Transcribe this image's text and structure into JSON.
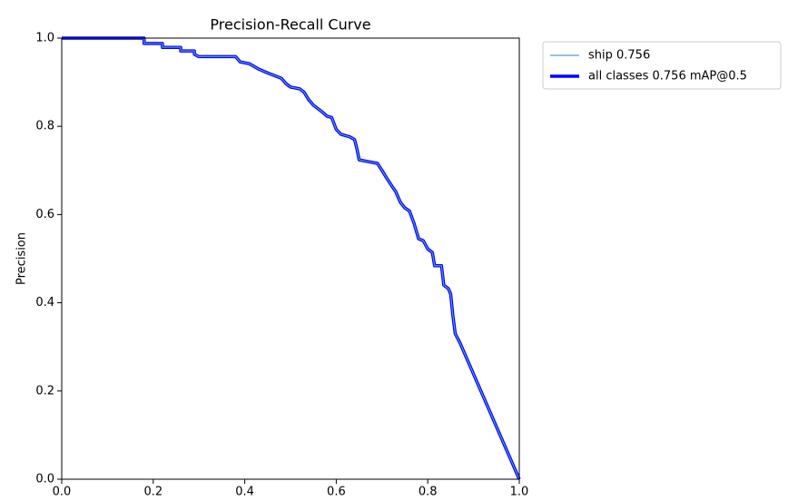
{
  "chart_data": {
    "type": "line",
    "title": "Precision-Recall Curve",
    "y_label": "Precision",
    "x": [
      0,
      0.18,
      0.18,
      0.22,
      0.22,
      0.26,
      0.26,
      0.29,
      0.29,
      0.3,
      0.38,
      0.39,
      0.41,
      0.43,
      0.45,
      0.48,
      0.49,
      0.5,
      0.52,
      0.53,
      0.54,
      0.55,
      0.56,
      0.57,
      0.58,
      0.59,
      0.6,
      0.61,
      0.63,
      0.64,
      0.645,
      0.65,
      0.67,
      0.69,
      0.7,
      0.71,
      0.72,
      0.73,
      0.74,
      0.75,
      0.76,
      0.77,
      0.78,
      0.79,
      0.8,
      0.81,
      0.815,
      0.83,
      0.835,
      0.845,
      0.85,
      0.855,
      0.86,
      0.87,
      1.0
    ],
    "series": [
      {
        "name": "ship 0.756",
        "color": "#5b9bd5",
        "width": 1.2,
        "values": [
          1,
          1,
          0.988,
          0.988,
          0.979,
          0.979,
          0.971,
          0.971,
          0.963,
          0.958,
          0.958,
          0.946,
          0.942,
          0.93,
          0.921,
          0.909,
          0.897,
          0.889,
          0.885,
          0.877,
          0.86,
          0.848,
          0.84,
          0.832,
          0.823,
          0.82,
          0.793,
          0.782,
          0.776,
          0.77,
          0.75,
          0.724,
          0.72,
          0.716,
          0.7,
          0.683,
          0.667,
          0.652,
          0.628,
          0.615,
          0.608,
          0.58,
          0.545,
          0.541,
          0.522,
          0.514,
          0.484,
          0.484,
          0.44,
          0.432,
          0.42,
          0.37,
          0.33,
          0.31,
          0
        ]
      },
      {
        "name": "all classes 0.756 mAP@0.5",
        "color": "#0000ff",
        "width": 3.5,
        "values": [
          1,
          1,
          0.988,
          0.988,
          0.979,
          0.979,
          0.971,
          0.971,
          0.963,
          0.958,
          0.958,
          0.946,
          0.942,
          0.93,
          0.921,
          0.909,
          0.897,
          0.889,
          0.885,
          0.877,
          0.86,
          0.848,
          0.84,
          0.832,
          0.823,
          0.82,
          0.793,
          0.782,
          0.776,
          0.77,
          0.75,
          0.724,
          0.72,
          0.716,
          0.7,
          0.683,
          0.667,
          0.652,
          0.628,
          0.615,
          0.608,
          0.58,
          0.545,
          0.541,
          0.522,
          0.514,
          0.484,
          0.484,
          0.44,
          0.432,
          0.42,
          0.37,
          0.33,
          0.31,
          0
        ]
      }
    ],
    "xlim": [
      0,
      1
    ],
    "ylim": [
      0,
      1
    ],
    "xticks": [
      {
        "value": 0,
        "label": "0.0"
      },
      0.2,
      0.4,
      0.6,
      0.8,
      {
        "value": 1,
        "label": "1.0"
      }
    ],
    "yticks": [
      {
        "value": 0,
        "label": "0.0"
      },
      0.2,
      0.4,
      0.6,
      0.8,
      {
        "value": 1,
        "label": "1.0"
      }
    ]
  }
}
